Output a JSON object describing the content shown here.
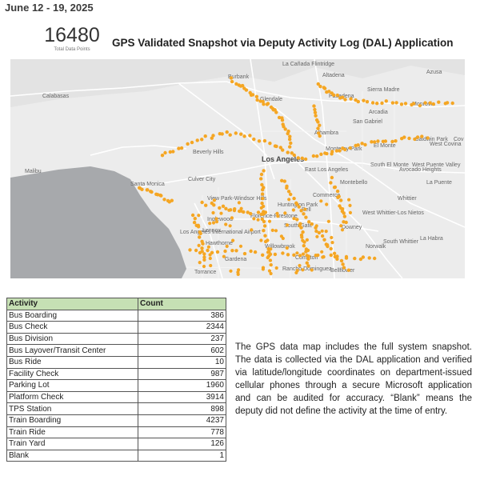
{
  "header": {
    "date_range": "June 12 - 19, 2025",
    "total_value": "16480",
    "total_label": "Total Data Points",
    "map_title": "GPS Validated Snapshot via Deputy Activity Log (DAL) Application"
  },
  "map": {
    "point_color": "#f5a623",
    "land_color": "#ececec",
    "water_color": "#a7a9ac",
    "labels": {
      "calabasas": "Calabasas",
      "malibu": "Malibu",
      "burbank": "Burbank",
      "glendale": "Glendale",
      "la_canada": "La Cañada Flintridge",
      "altadena": "Altadena",
      "sierra_madre": "Sierra Madre",
      "monrovia": "Monrovia",
      "azusa": "Azusa",
      "arcadia": "Arcadia",
      "san_gabriel": "San Gabriel",
      "pasadena": "Pasadena",
      "alhambra": "Alhambra",
      "monterey_park": "Monterey Park",
      "el_monte": "El Monte",
      "baldwin_park": "Baldwin Park",
      "west_covina": "West Covina",
      "covina": "Cov",
      "south_el_monte": "South El Monte",
      "west_puente_valley": "West Puente Valley",
      "avocado_heights": "Avocado Heights",
      "los_angeles": "Los Angeles",
      "beverly_hills": "Beverly Hills",
      "santa_monica": "Santa Monica",
      "culver_city": "Culver City",
      "east_la": "East Los Angeles",
      "montebello": "Montebello",
      "la_puente": "La Puente",
      "view_park": "View Park-Windsor Hills",
      "inglewood": "Inglewood",
      "huntington_park": "Huntington Park",
      "commerce": "Commerce",
      "bell": "Bell",
      "downey": "Downey",
      "whittier": "Whittier",
      "west_whittier": "West Whittier-Los Nietos",
      "south_gate": "South Gate",
      "florence": "Florence-Firestone",
      "los_angeles_airport": "Los Angeles International Airport",
      "hawthorne": "Hawthorne",
      "lennox": "Lennox",
      "willowbrook": "Willowbrook",
      "compton": "Compton",
      "norwalk": "Norwalk",
      "south_whittier": "South Whittier",
      "la_habra": "La Habra",
      "bellflower": "Bellflower",
      "rancho_dominguez": "Rancho Dominguez",
      "gardena": "Gardena",
      "torrance": "Torrance"
    }
  },
  "table": {
    "headers": [
      "Activity",
      "Count"
    ],
    "rows": [
      {
        "activity": "Bus Boarding",
        "count": "386"
      },
      {
        "activity": "Bus Check",
        "count": "2344"
      },
      {
        "activity": "Bus Division",
        "count": "237"
      },
      {
        "activity": "Bus Layover/Transit Center",
        "count": "602"
      },
      {
        "activity": "Bus Ride",
        "count": "10"
      },
      {
        "activity": "Facility Check",
        "count": "987"
      },
      {
        "activity": "Parking Lot",
        "count": "1960"
      },
      {
        "activity": "Platform Check",
        "count": "3914"
      },
      {
        "activity": "TPS Station",
        "count": "898"
      },
      {
        "activity": "Train Boarding",
        "count": "4237"
      },
      {
        "activity": "Train Ride",
        "count": "778"
      },
      {
        "activity": "Train Yard",
        "count": "126"
      },
      {
        "activity": "Blank",
        "count": "1"
      }
    ]
  },
  "description": "The GPS data map includes the full system snapshot. The data is collected via the DAL application and verified via latitude/longitude coordinates on department-issued cellular phones through a secure Microsoft application and can be audited for accuracy. “Blank” means the deputy did not define the activity at the time of entry."
}
